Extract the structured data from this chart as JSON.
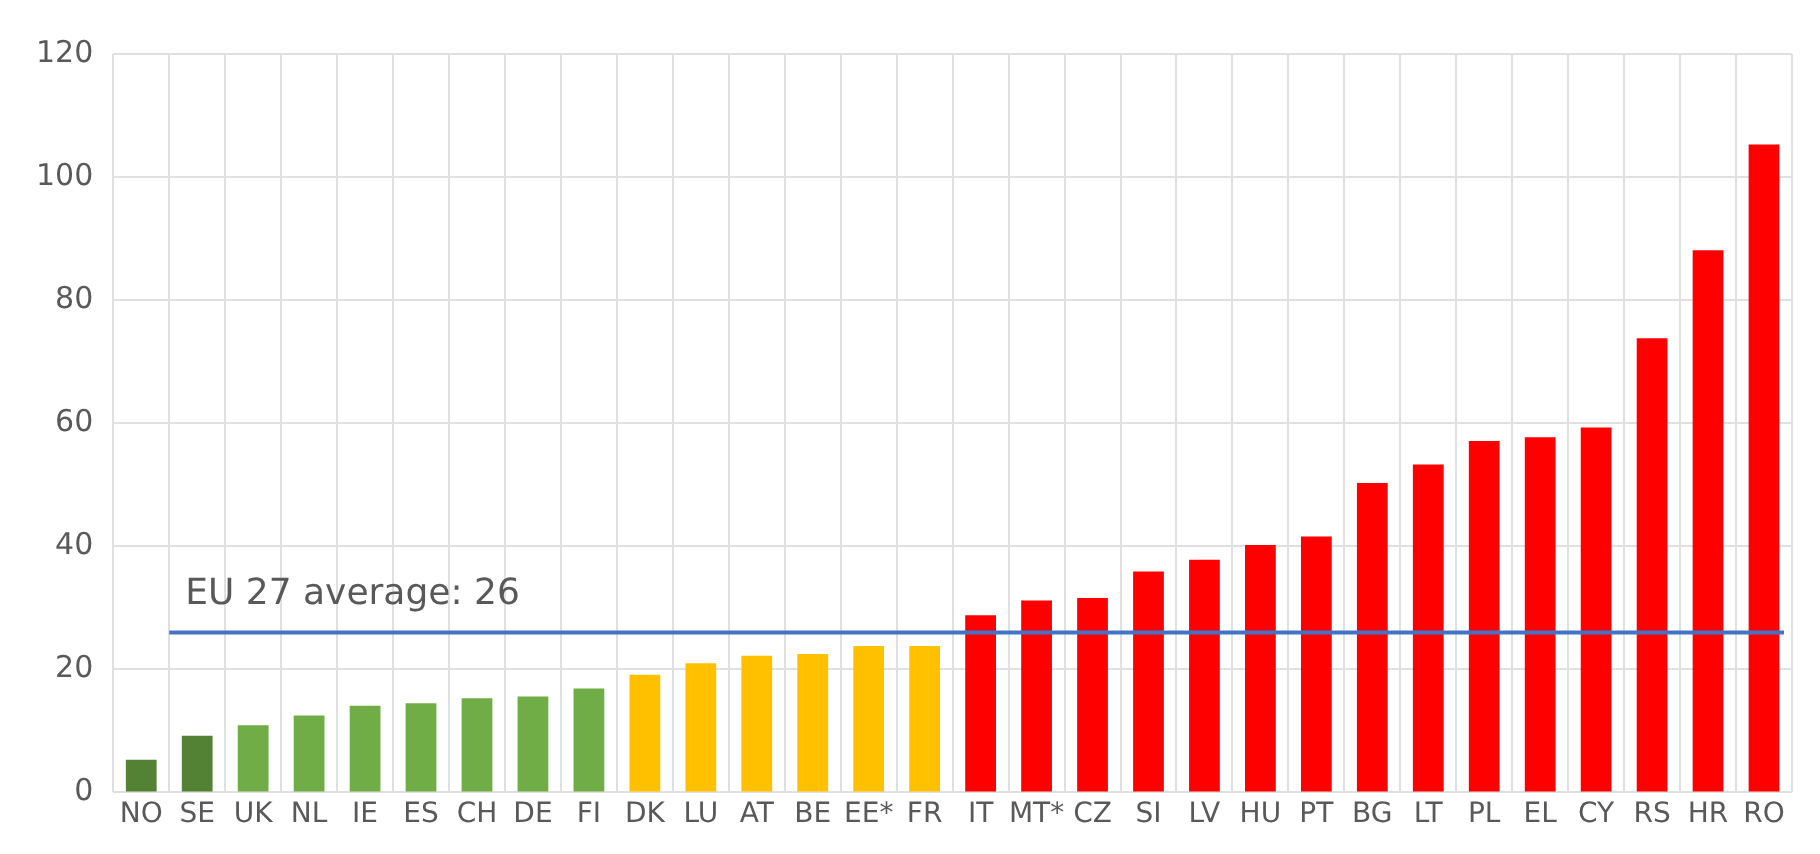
{
  "chart_data": {
    "type": "bar",
    "categories": [
      "NO",
      "SE",
      "UK",
      "NL",
      "IE",
      "ES",
      "CH",
      "DE",
      "FI",
      "DK",
      "LU",
      "AT",
      "BE",
      "EE*",
      "FR",
      "IT",
      "MT*",
      "CZ",
      "SI",
      "LV",
      "HU",
      "PT",
      "BG",
      "LT",
      "PL",
      "EL",
      "CY",
      "RS",
      "HR",
      "RO"
    ],
    "values": [
      5.3,
      9.2,
      10.9,
      12.5,
      14.1,
      14.5,
      15.3,
      15.6,
      16.9,
      19.1,
      21.0,
      22.2,
      22.5,
      23.8,
      23.8,
      28.8,
      31.2,
      31.6,
      35.9,
      37.8,
      40.2,
      41.6,
      50.3,
      53.3,
      57.1,
      57.7,
      59.3,
      73.8,
      88.1,
      105.3
    ],
    "colors": [
      "#548235",
      "#548235",
      "#70ad47",
      "#70ad47",
      "#70ad47",
      "#70ad47",
      "#70ad47",
      "#70ad47",
      "#70ad47",
      "#ffc000",
      "#ffc000",
      "#ffc000",
      "#ffc000",
      "#ffc000",
      "#ffc000",
      "#ff0000",
      "#ff0000",
      "#ff0000",
      "#ff0000",
      "#ff0000",
      "#ff0000",
      "#ff0000",
      "#ff0000",
      "#ff0000",
      "#ff0000",
      "#ff0000",
      "#ff0000",
      "#ff0000",
      "#ff0000",
      "#ff0000"
    ],
    "ylim": [
      0,
      120
    ],
    "yticks": [
      0,
      20,
      40,
      60,
      80,
      100,
      120
    ],
    "grid": true,
    "ref_lines": [
      {
        "axis": "y",
        "value": 26,
        "label": "EU 27 average: 26",
        "color": "#4472c4"
      }
    ]
  }
}
